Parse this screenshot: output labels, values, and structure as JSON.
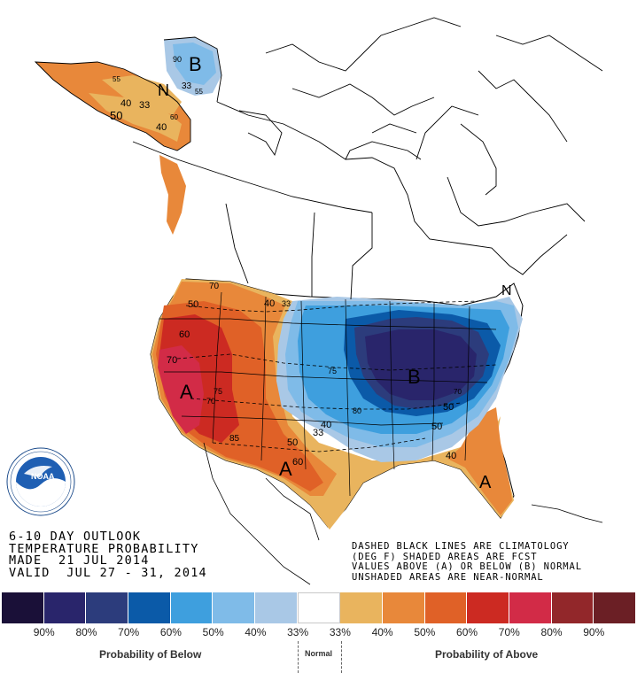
{
  "title_lines": {
    "line1": "6-10 DAY OUTLOOK",
    "line2": "TEMPERATURE PROBABILITY",
    "line3": "MADE  21 JUL 2014",
    "line4": "VALID  JUL 27 - 31, 2014"
  },
  "notes": {
    "line1": "DASHED BLACK LINES ARE CLIMATOLOGY",
    "line2": "(DEG F) SHADED AREAS ARE FCST",
    "line3": "VALUES ABOVE (A) OR BELOW (B) NORMAL",
    "line4": "UNSHADED AREAS ARE NEAR-NORMAL"
  },
  "logo": {
    "text": "NOAA",
    "ring_text": "NATIONAL OCEANIC AND ATMOSPHERIC ADMINISTRATION · U.S. DEPARTMENT OF COMMERCE"
  },
  "legend": {
    "colors": [
      "#1a1038",
      "#29256b",
      "#2c3c7c",
      "#0b5aa8",
      "#3e9fde",
      "#7fbbe8",
      "#a9c8e6",
      "#ffffff",
      "#e9b45e",
      "#e8883a",
      "#e06127",
      "#cc2a22",
      "#d22b47",
      "#92272a",
      "#6b1f25"
    ],
    "percent_labels": [
      "90%",
      "80%",
      "70%",
      "60%",
      "50%",
      "40%",
      "33%",
      "33%",
      "40%",
      "50%",
      "60%",
      "70%",
      "80%",
      "90%"
    ],
    "below_label": "Probability of Below",
    "normal_label": "Normal",
    "above_label": "Probability of Above"
  },
  "map_labels": {
    "alaska_b": "B",
    "alaska_n": "N",
    "alaska_90": "90",
    "alaska_33a": "33",
    "alaska_55": "55",
    "alaska_33b": "33",
    "alaska_40": "40",
    "alaska_55b": "55",
    "alaska_50": "50",
    "alaska_40b": "40",
    "alaska_60": "60",
    "west_a": "A",
    "west_70": "70",
    "west_50": "50",
    "west_60": "60",
    "west_70b": "70",
    "west_85": "85",
    "west_75": "75",
    "west_70c": "70",
    "west_40": "40",
    "west_33": "33",
    "east_b": "B",
    "east_75": "75",
    "east_80": "80",
    "east_70": "70",
    "east_50": "50",
    "east_50b": "50",
    "east_40": "40",
    "east_33": "33",
    "south_a": "A",
    "south_60": "60",
    "south_50": "50",
    "south_40": "40",
    "fl_a": "A",
    "ne_n": "N"
  }
}
